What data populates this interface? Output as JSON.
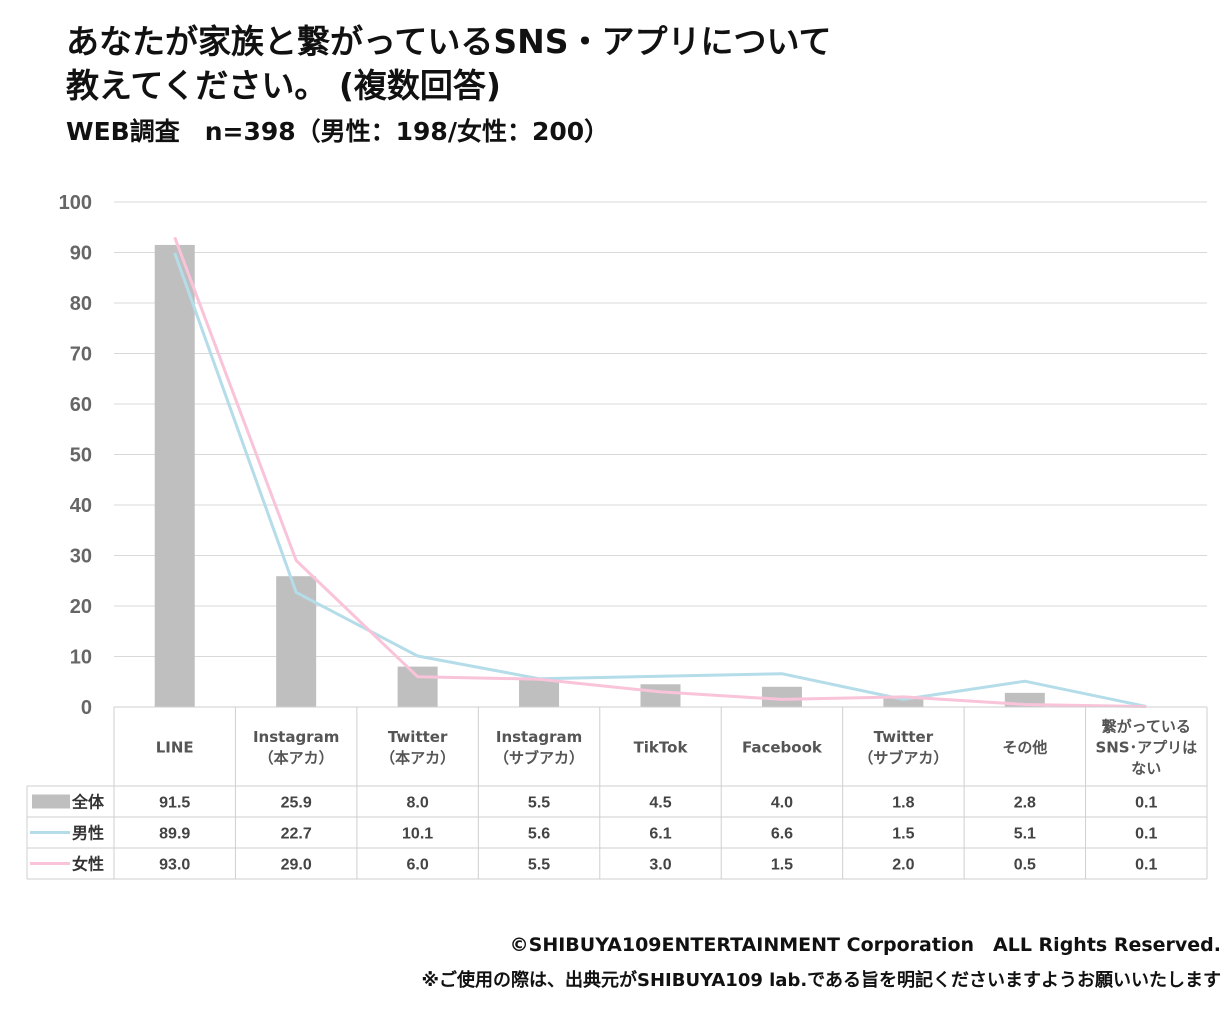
{
  "title_line1": "あなたが家族と繋がっているSNS・アプリについて",
  "title_line2": "教えてください。 (複数回答)",
  "subtitle": "WEB調査　n=398（男性：198/女性：200）",
  "footer_copyright": "©SHIBUYA109ENTERTAINMENT Corporation　ALL Rights Reserved.",
  "footer_note": "※ご使用の際は、出典元がSHIBUYA109 lab.である旨を明記くださいますようお願いいたします",
  "chart_data": {
    "type": "bar",
    "title": "あなたが家族と繋がっているSNS・アプリについて教えてください。 (複数回答)",
    "ylim": [
      0,
      100
    ],
    "yticks": [
      0,
      10,
      20,
      30,
      40,
      50,
      60,
      70,
      80,
      90,
      100
    ],
    "grid": true,
    "legend": "table-left",
    "categories": [
      [
        "LINE"
      ],
      [
        "Instagram",
        "（本アカ）"
      ],
      [
        "Twitter",
        "（本アカ）"
      ],
      [
        "Instagram",
        "（サブアカ）"
      ],
      [
        "TikTok"
      ],
      [
        "Facebook"
      ],
      [
        "Twitter",
        "（サブアカ）"
      ],
      [
        "その他"
      ],
      [
        "繋がっている",
        "SNS･アプリは",
        "ない"
      ]
    ],
    "series": [
      {
        "name": "全体",
        "type": "bar",
        "color": "#bfbfbf",
        "values": [
          91.5,
          25.9,
          8.0,
          5.5,
          4.5,
          4.0,
          1.8,
          2.8,
          0.1
        ]
      },
      {
        "name": "男性",
        "type": "line",
        "color": "#b4dde9",
        "values": [
          89.9,
          22.7,
          10.1,
          5.6,
          6.1,
          6.6,
          1.5,
          5.1,
          0.1
        ]
      },
      {
        "name": "女性",
        "type": "line",
        "color": "#f9c3d9",
        "values": [
          93.0,
          29.0,
          6.0,
          5.5,
          3.0,
          1.5,
          2.0,
          0.5,
          0.1
        ]
      }
    ]
  }
}
